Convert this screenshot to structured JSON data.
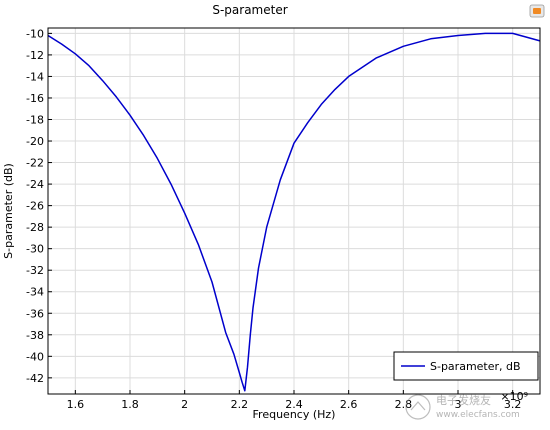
{
  "chart_data": {
    "type": "line",
    "title": "S-parameter",
    "xlabel": "Frequency (Hz)",
    "ylabel": "S-parameter (dB)",
    "x_exponent_label": "×10⁹",
    "xlim": [
      1.5,
      3.3
    ],
    "ylim": [
      -43.5,
      -9.5
    ],
    "x_ticks": [
      1.6,
      1.8,
      2.0,
      2.2,
      2.4,
      2.6,
      2.8,
      3.0,
      3.2
    ],
    "x_tick_labels": [
      "1.6",
      "1.8",
      "2",
      "2.2",
      "2.4",
      "2.6",
      "2.8",
      "3",
      "3.2"
    ],
    "y_ticks": [
      -42,
      -40,
      -38,
      -36,
      -34,
      -32,
      -30,
      -28,
      -26,
      -24,
      -22,
      -20,
      -18,
      -16,
      -14,
      -12,
      -10
    ],
    "y_tick_labels": [
      "-42",
      "-40",
      "-38",
      "-36",
      "-34",
      "-32",
      "-30",
      "-28",
      "-26",
      "-24",
      "-22",
      "-20",
      "-18",
      "-16",
      "-14",
      "-12",
      "-10"
    ],
    "grid": true,
    "legend_position": "bottom-right",
    "series": [
      {
        "name": "S-parameter, dB",
        "color": "#0000cc",
        "x": [
          1.5,
          1.55,
          1.6,
          1.65,
          1.7,
          1.75,
          1.8,
          1.85,
          1.9,
          1.95,
          2.0,
          2.05,
          2.1,
          2.15,
          2.18,
          2.2,
          2.21,
          2.22,
          2.23,
          2.24,
          2.25,
          2.27,
          2.3,
          2.35,
          2.4,
          2.45,
          2.5,
          2.55,
          2.6,
          2.7,
          2.8,
          2.9,
          3.0,
          3.1,
          3.2,
          3.3
        ],
        "y": [
          -10.2,
          -11.0,
          -11.9,
          -13.0,
          -14.4,
          -15.9,
          -17.6,
          -19.5,
          -21.6,
          -24.0,
          -26.7,
          -29.6,
          -33.1,
          -37.8,
          -39.8,
          -41.5,
          -42.4,
          -43.2,
          -41.0,
          -38.0,
          -35.5,
          -31.8,
          -28.0,
          -23.6,
          -20.2,
          -18.3,
          -16.6,
          -15.2,
          -14.0,
          -12.3,
          -11.2,
          -10.5,
          -10.2,
          -10.0,
          -10.0,
          -10.7
        ]
      }
    ]
  },
  "logo": {
    "name": "comsol-logo"
  },
  "watermark": {
    "text": "电子发烧友 www.elecfans.com"
  }
}
